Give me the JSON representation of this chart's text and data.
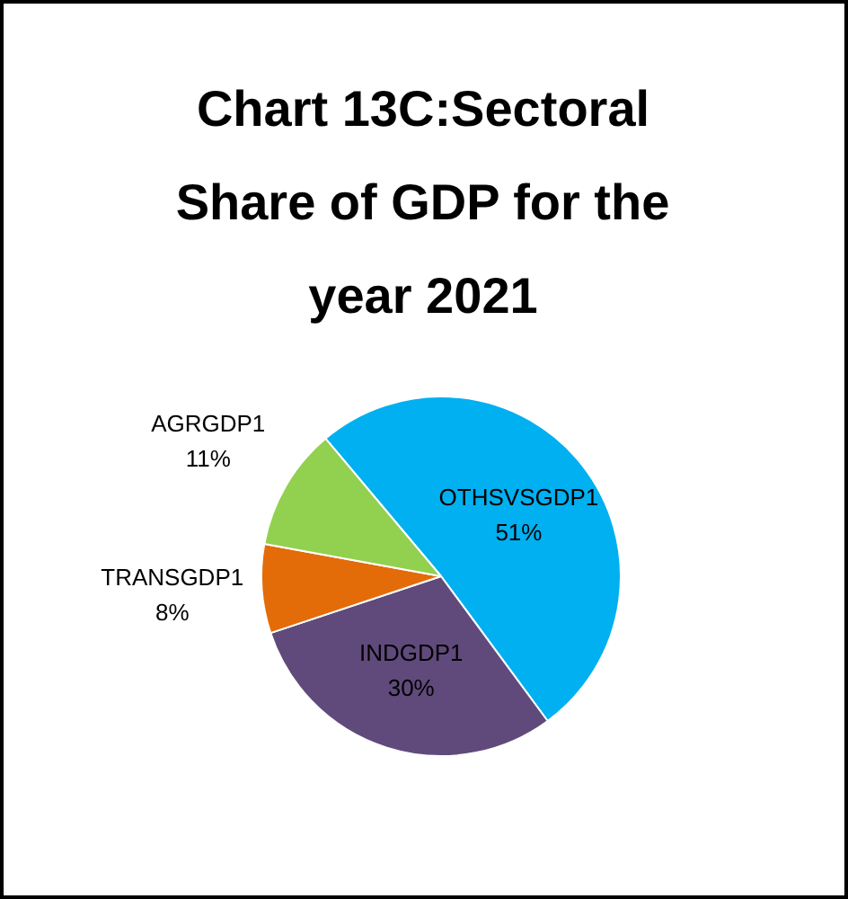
{
  "chart_data": {
    "type": "pie",
    "title": "Chart 13C:Sectoral Share of GDP for the year 2021",
    "categories": [
      "OTHSVSGDP1",
      "INDGDP1",
      "TRANSGDP1",
      "AGRGDP1"
    ],
    "values": [
      51,
      30,
      8,
      11
    ],
    "value_labels": [
      "51%",
      "30%",
      "8%",
      "11%"
    ],
    "colors": [
      "#00b0f0",
      "#604a7b",
      "#e36c09",
      "#92d050"
    ]
  }
}
